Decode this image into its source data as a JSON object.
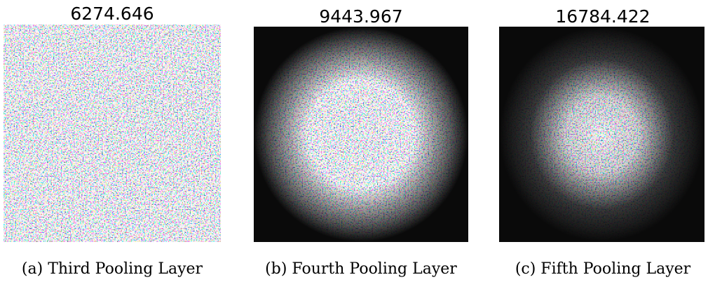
{
  "panels": [
    {
      "title": "6274.646",
      "caption": "(a) Third Pooling Layer"
    },
    {
      "title": "9443.967",
      "caption": "(b) Fourth Pooling Layer"
    },
    {
      "title": "16784.422",
      "caption": "(c) Fifth Pooling Layer"
    }
  ]
}
